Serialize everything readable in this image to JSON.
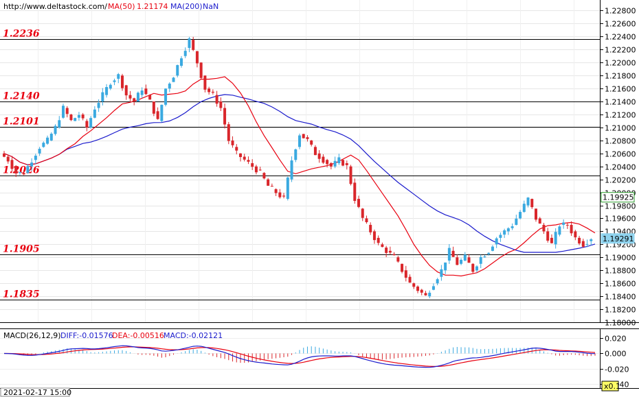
{
  "header": {
    "site": "http://www.deltastock.com/",
    "ma50_label": "MA(50)",
    "ma50_value": "1.21174",
    "ma200_label": "MA(200)",
    "ma200_value": "NaN"
  },
  "macd_header": {
    "label": "MACD(26,12,9)",
    "diff": "DIFF:-0.01576",
    "dea": "DEA:-0.00516",
    "macd": "MACD:-0.02121"
  },
  "footer": {
    "datetime": "2021-02-17 15:00",
    "zoom": "x0.1"
  },
  "colors": {
    "up": "#3aa9e0",
    "down": "#d9262b",
    "ma50": "#e8000f",
    "ma200": "#1a1acc",
    "level": "#e8000f"
  },
  "chart_data": [
    {
      "type": "candlestick",
      "ylim": [
        1.18,
        1.229
      ],
      "y_ticks": [
        "1.22800",
        "1.22600",
        "1.22400",
        "1.22200",
        "1.22000",
        "1.21800",
        "1.21600",
        "1.21400",
        "1.21200",
        "1.21000",
        "1.20800",
        "1.20600",
        "1.20400",
        "1.20200",
        "1.20000",
        "1.19800",
        "1.19600",
        "1.19400",
        "1.19200",
        "1.19000",
        "1.18800",
        "1.18600",
        "1.18400",
        "1.18200",
        "1.18000"
      ],
      "levels": [
        {
          "value": 1.2236,
          "label": "1.2236"
        },
        {
          "value": 1.214,
          "label": "1.2140"
        },
        {
          "value": 1.2101,
          "label": "1.2101"
        },
        {
          "value": 1.2026,
          "label": "1.2026"
        },
        {
          "value": 1.1905,
          "label": "1.1905"
        },
        {
          "value": 1.1835,
          "label": "1.1835"
        }
      ],
      "price_labels": [
        {
          "value": 1.19925,
          "label": "1.19925",
          "style": "outline"
        },
        {
          "value": 1.19291,
          "label": "1.19291",
          "style": "filled"
        }
      ],
      "close_path": [
        1.206,
        1.205,
        1.203,
        1.203,
        1.205,
        1.207,
        1.208,
        1.21,
        1.213,
        1.211,
        1.212,
        1.21,
        1.213,
        1.215,
        1.217,
        1.218,
        1.215,
        1.214,
        1.216,
        1.214,
        1.211,
        1.216,
        1.218,
        1.221,
        1.2235,
        1.22,
        1.216,
        1.215,
        1.213,
        1.208,
        1.206,
        1.205,
        1.204,
        1.203,
        1.201,
        1.2,
        1.199,
        1.205,
        1.209,
        1.208,
        1.206,
        1.205,
        1.204,
        1.205,
        1.204,
        1.199,
        1.196,
        1.194,
        1.192,
        1.191,
        1.19,
        1.188,
        1.186,
        1.185,
        1.184,
        1.186,
        1.188,
        1.191,
        1.189,
        1.19,
        1.188,
        1.19,
        1.191,
        1.193,
        1.194,
        1.195,
        1.197,
        1.199,
        1.196,
        1.194,
        1.192,
        1.195,
        1.195,
        1.193,
        1.192,
        1.193
      ],
      "ma50_value": 1.21174,
      "ma200_value": "NaN"
    },
    {
      "type": "macd",
      "params": "26,12,9",
      "ylim": [
        -0.045,
        0.028
      ],
      "y_ticks": [
        "0.020",
        "0.000",
        "-0.020",
        "-0.040"
      ],
      "diff_value": -0.01576,
      "dea_value": -0.00516,
      "macd_value": -0.02121
    }
  ]
}
